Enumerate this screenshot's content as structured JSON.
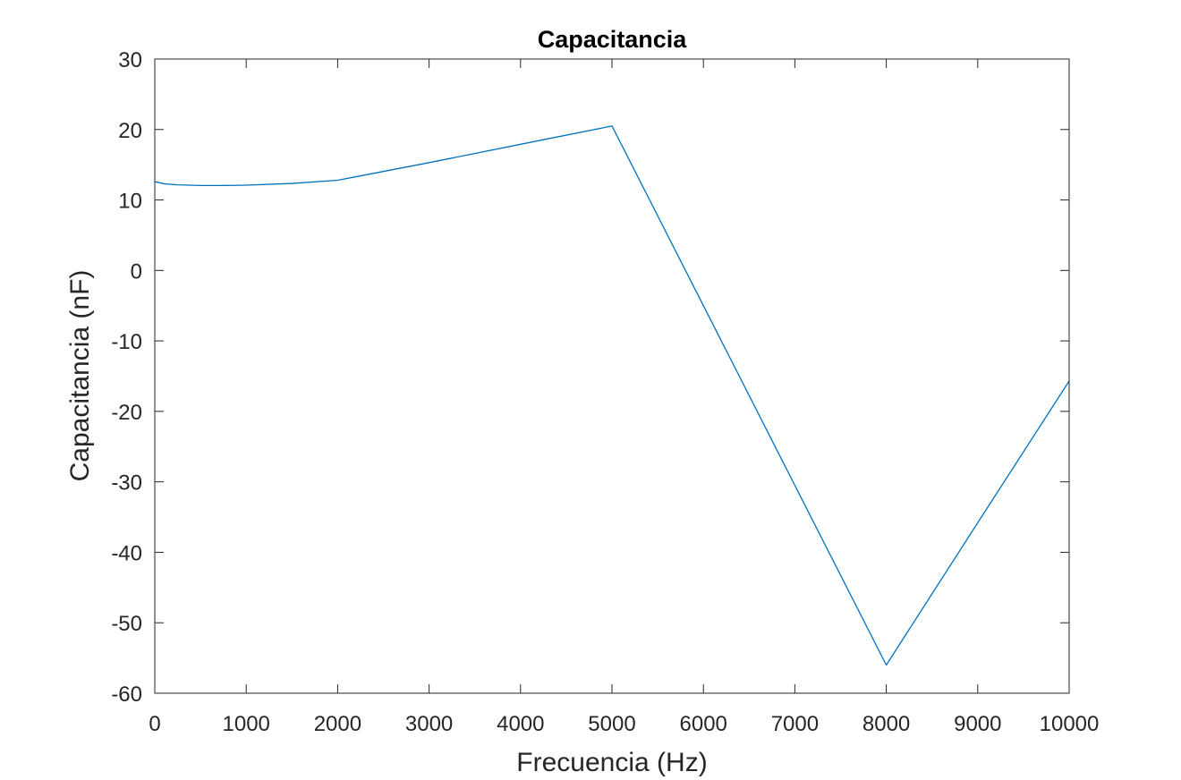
{
  "chart_data": {
    "type": "line",
    "title": "Capacitancia",
    "xlabel": "Frecuencia (Hz)",
    "ylabel": "Capacitancia (nF)",
    "xlim": [
      0,
      10000
    ],
    "ylim": [
      -60,
      30
    ],
    "xticks": [
      0,
      1000,
      2000,
      3000,
      4000,
      5000,
      6000,
      7000,
      8000,
      9000,
      10000
    ],
    "yticks": [
      -60,
      -50,
      -40,
      -30,
      -20,
      -10,
      0,
      10,
      20,
      30
    ],
    "grid": false,
    "series": [
      {
        "color": "#0072BD",
        "x": [
          0,
          100,
          250,
          500,
          750,
          1000,
          1500,
          2000,
          3000,
          4000,
          5000,
          6000,
          7000,
          8000,
          9000,
          10000
        ],
        "y": [
          12.6,
          12.3,
          12.15,
          12.05,
          12.05,
          12.1,
          12.35,
          12.8,
          15.3,
          17.9,
          20.5,
          -5.0,
          -30.5,
          -56.0,
          -35.8,
          -15.7
        ]
      }
    ]
  }
}
